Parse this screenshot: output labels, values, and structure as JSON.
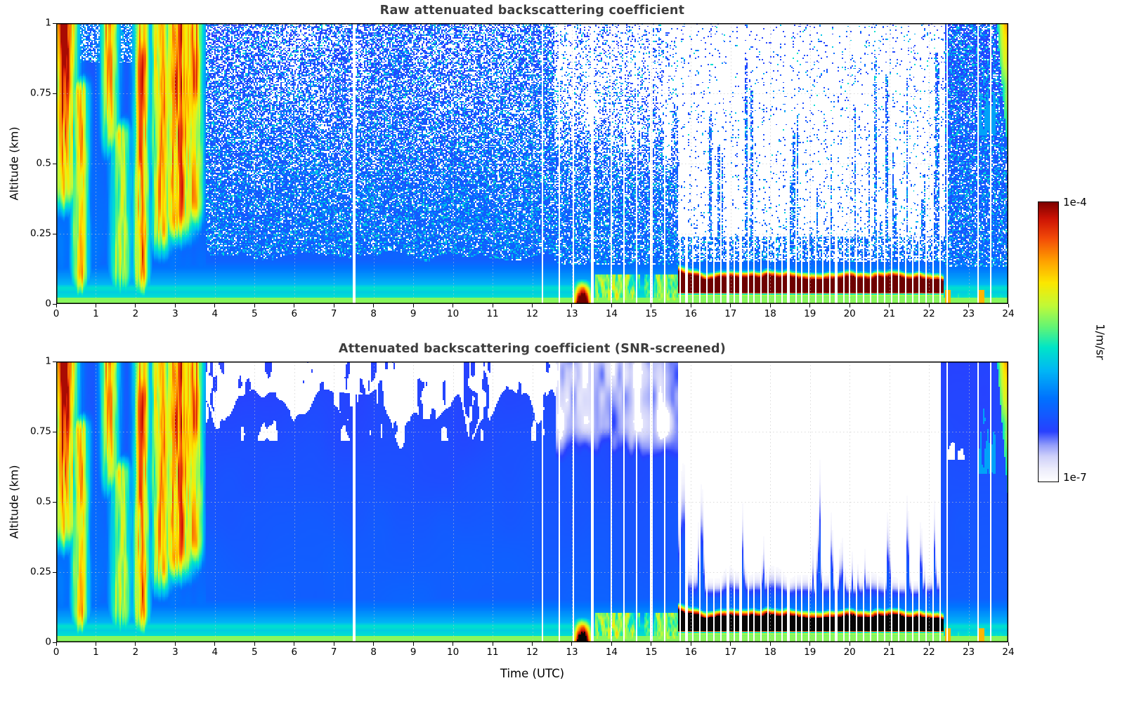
{
  "figure": {
    "background": "#ffffff",
    "title_color": "#3d3d3d"
  },
  "colorbar": {
    "max_label": "1e-4",
    "min_label": "1e-7",
    "units": "1/m/sr",
    "scale": "log",
    "min": 1e-07,
    "max": 0.0001,
    "colormap": "jet-like with white floor, dark red top"
  },
  "chart_data": [
    {
      "type": "heatmap",
      "title": "Raw attenuated backscattering coefficient",
      "xlabel": "",
      "ylabel": "Altitude (km)",
      "x_range": [
        0,
        24
      ],
      "x_ticks": [
        0,
        1,
        2,
        3,
        4,
        5,
        6,
        7,
        8,
        9,
        10,
        11,
        12,
        13,
        14,
        15,
        16,
        17,
        18,
        19,
        20,
        21,
        22,
        23,
        24
      ],
      "y_range": [
        0,
        1
      ],
      "y_ticks": [
        0,
        0.25,
        0.5,
        0.75,
        1
      ],
      "y_tick_labels": [
        "0",
        "0.25",
        "0.5",
        "0.75",
        "1"
      ],
      "grid": "dotted both axes",
      "value_scale": {
        "log10_min": -7,
        "log10_max": -4,
        "units": "1/m/sr"
      },
      "features": [
        {
          "desc": "Aerosol/cloud plumes rising to 1 km, up to ~1e-4 (yellow-orange-red)",
          "t": [
            0,
            3.75
          ],
          "alt_km": [
            0,
            1
          ]
        },
        {
          "desc": "Sharp transition where bright morning haze ends",
          "t": 3.75
        },
        {
          "desc": "Shallow boundary layer, cyan-green",
          "t": [
            0,
            24
          ],
          "alt_km": [
            0,
            0.15
          ]
        },
        {
          "desc": "Thin elevated aerosol lamina near 0.05 km all day",
          "t": [
            0,
            24
          ],
          "alt_km": [
            0.04,
            0.07
          ]
        },
        {
          "desc": "Random blue/white noise speckle above boundary layer",
          "t": [
            3.75,
            15.7
          ],
          "alt_km": [
            0.2,
            1
          ]
        },
        {
          "desc": "Surface red patch",
          "t": [
            12.9,
            13.6
          ],
          "alt_km": [
            0,
            0.08
          ]
        },
        {
          "desc": "Patchy green-yellow surface aerosol",
          "t": [
            13.6,
            15.7
          ],
          "alt_km": [
            0,
            0.1
          ]
        },
        {
          "desc": "Optically thick fog/cloud layer saturating the scale (dark red)",
          "t": [
            15.7,
            22.4
          ],
          "alt_km": [
            0.03,
            0.13
          ]
        },
        {
          "desc": "Signal lost above fog: white with sporadic noisy blue columns",
          "t": [
            15.7,
            22.4
          ],
          "alt_km": [
            0.15,
            1
          ]
        },
        {
          "desc": "Many narrow white vertical stripes = missing profiles",
          "t": [
            12.2,
            23.6
          ]
        },
        {
          "desc": "Dense blue speckle returns; green-cyan surface layer",
          "t": [
            22.4,
            24
          ],
          "alt_km": [
            0,
            1
          ]
        },
        {
          "desc": "Cyan-green feature at top right corner",
          "t": [
            23.7,
            24
          ],
          "alt_km": [
            0.55,
            1
          ]
        }
      ]
    },
    {
      "type": "heatmap",
      "title": "Attenuated backscattering coefficient (SNR-screened)",
      "xlabel": "Time (UTC)",
      "ylabel": "Altitude (km)",
      "x_range": [
        0,
        24
      ],
      "x_ticks": [
        0,
        1,
        2,
        3,
        4,
        5,
        6,
        7,
        8,
        9,
        10,
        11,
        12,
        13,
        14,
        15,
        16,
        17,
        18,
        19,
        20,
        21,
        22,
        23,
        24
      ],
      "y_range": [
        0,
        1
      ],
      "y_ticks": [
        0,
        0.25,
        0.5,
        0.75,
        1
      ],
      "y_tick_labels": [
        "0",
        "0.25",
        "0.5",
        "0.75",
        "1"
      ],
      "grid": "dotted both axes",
      "value_scale": {
        "log10_min": -7,
        "log10_max": -4,
        "units": "1/m/sr"
      },
      "features": [
        {
          "desc": "Same scene after SNR screening: speckle removed, solid blue background",
          "t": [
            3.75,
            15.7
          ]
        },
        {
          "desc": "White screened patches at panel top",
          "t": [
            4,
            13
          ],
          "alt_km": [
            0.8,
            1
          ]
        },
        {
          "desc": "Pale partially-screened haze",
          "t": [
            12.6,
            15.7
          ],
          "alt_km": [
            0.5,
            1
          ]
        },
        {
          "desc": "Fog/cloud layer saturates scale, rendered black",
          "t": [
            15.7,
            22.35
          ],
          "alt_km": [
            0.04,
            0.12
          ]
        },
        {
          "desc": "Black surface patch",
          "t": [
            13.1,
            13.5
          ],
          "alt_km": [
            0,
            0.08
          ]
        },
        {
          "desc": "Region above shallow layer blanked white with pale lavender fringe",
          "t": [
            15.7,
            22.3
          ],
          "alt_km": [
            0.2,
            1
          ]
        },
        {
          "desc": "Green layer beneath black fog layer",
          "t": [
            15.7,
            22.35
          ],
          "alt_km": [
            0,
            0.04
          ]
        },
        {
          "desc": "Full blue field returns; cyan patches aloft",
          "t": [
            22.35,
            24
          ]
        },
        {
          "desc": "Cyan-green feature at top right corner",
          "t": [
            23.7,
            24
          ],
          "alt_km": [
            0.55,
            1
          ]
        }
      ]
    }
  ],
  "model": {
    "log_min": -7,
    "log_max": -4,
    "grid": {
      "nx": 680,
      "nz": 220
    },
    "morning_end": 3.78,
    "gap_halfwidth": 0.02,
    "plumes": [
      {
        "tc": 0.22,
        "tw": 0.3,
        "zlo": 0.3,
        "zhi": 1.0,
        "amp": 2.35,
        "top_heavy": true
      },
      {
        "tc": 0.6,
        "tw": 0.22,
        "zlo": 0.0,
        "zhi": 0.85,
        "amp": 1.5,
        "top_heavy": false
      },
      {
        "tc": 1.35,
        "tw": 0.22,
        "zlo": 0.5,
        "zhi": 1.0,
        "amp": 1.85,
        "top_heavy": true
      },
      {
        "tc": 1.62,
        "tw": 0.28,
        "zlo": 0.0,
        "zhi": 0.7,
        "amp": 1.15,
        "top_heavy": false
      },
      {
        "tc": 2.15,
        "tw": 0.2,
        "zlo": 0.0,
        "zhi": 1.0,
        "amp": 1.7,
        "top_heavy": false
      },
      {
        "tc": 2.65,
        "tw": 0.28,
        "zlo": 0.15,
        "zhi": 1.0,
        "amp": 1.5,
        "top_heavy": false
      },
      {
        "tc": 3.1,
        "tw": 0.4,
        "zlo": 0.2,
        "zhi": 1.0,
        "amp": 1.8,
        "top_heavy": false
      },
      {
        "tc": 3.5,
        "tw": 0.22,
        "zlo": 0.25,
        "zhi": 1.0,
        "amp": 1.55,
        "top_heavy": false
      }
    ],
    "red_patch": {
      "t0": 12.9,
      "t1": 13.65,
      "tc": 13.27,
      "tw": 0.22,
      "z_top": 0.09,
      "amp": 3.2
    },
    "green_patch": {
      "t0": 13.6,
      "t1": 15.68,
      "z_top": 0.105
    },
    "fog_layer": {
      "t0": 15.66,
      "t1": 22.38,
      "z_top": 0.105,
      "z_bot": 0.03,
      "amp": 3.15
    },
    "late_surface": {
      "t0": 22.3,
      "spots": [
        22.47,
        23.33
      ]
    },
    "screen_mask": {
      "t0": 15.66,
      "t1": 22.32,
      "base": 0.17
    },
    "gaps": [
      7.52,
      12.27,
      12.68,
      13.05,
      13.52,
      13.98,
      14.3,
      14.62,
      15.0,
      15.35,
      15.72,
      15.88,
      16.04,
      16.22,
      16.4,
      16.58,
      16.76,
      16.94,
      17.1,
      17.26,
      17.44,
      17.6,
      17.78,
      17.96,
      18.12,
      18.3,
      18.46,
      18.64,
      18.8,
      18.98,
      19.14,
      19.32,
      19.5,
      19.66,
      19.84,
      20.0,
      20.18,
      20.36,
      20.52,
      20.7,
      20.88,
      21.04,
      21.22,
      21.4,
      21.58,
      21.76,
      21.94,
      22.1,
      22.28,
      22.46,
      23.25,
      23.55
    ]
  }
}
